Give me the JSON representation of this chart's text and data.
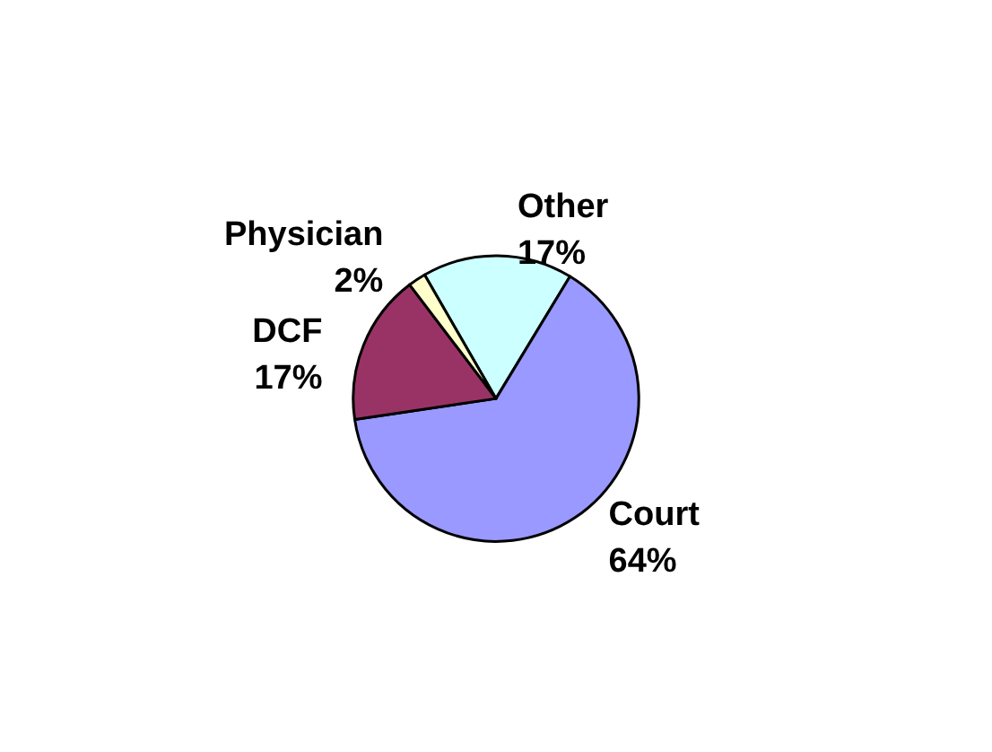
{
  "chart_data": {
    "type": "pie",
    "categories": [
      "Other",
      "Court",
      "DCF",
      "Physician"
    ],
    "values": [
      17,
      64,
      17,
      2
    ],
    "value_labels": [
      "17%",
      "64%",
      "17%",
      "2%"
    ],
    "colors": [
      "#ccffff",
      "#9999ff",
      "#993366",
      "#ffffcc"
    ]
  }
}
